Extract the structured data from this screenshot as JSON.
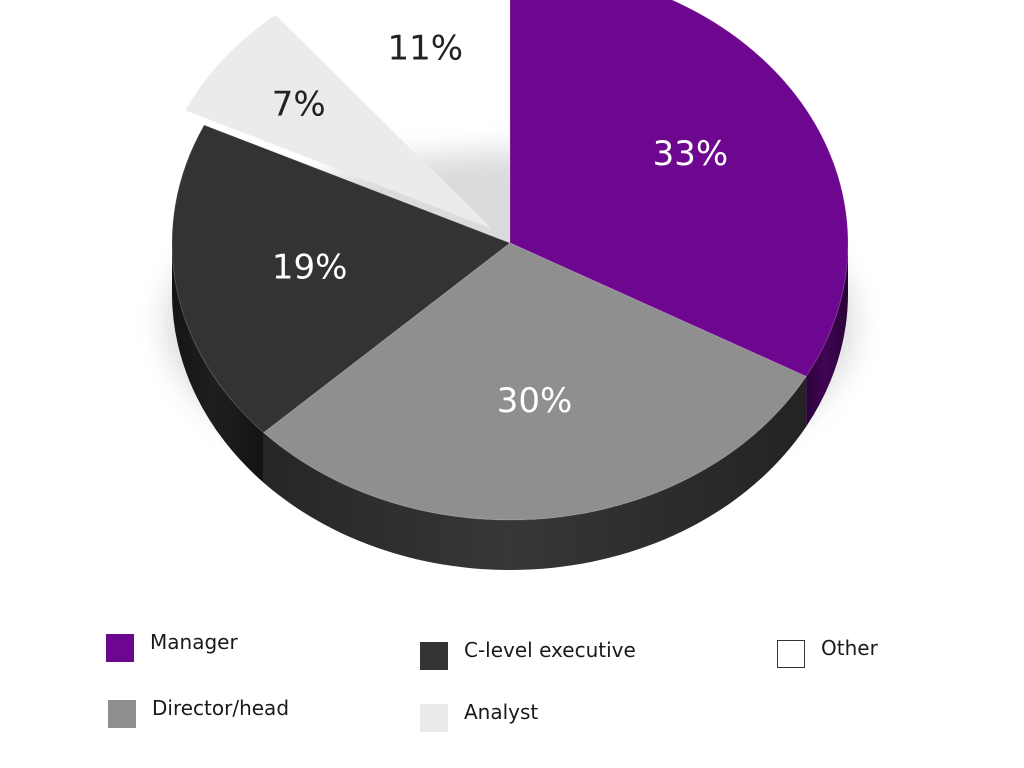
{
  "chart_data": {
    "type": "pie",
    "categories": [
      "Manager",
      "Director/head",
      "C-level executive",
      "Analyst",
      "Other"
    ],
    "values": [
      33,
      30,
      19,
      7,
      11
    ],
    "labels": [
      "33%",
      "30%",
      "19%",
      "7%",
      "11%"
    ],
    "colors": [
      "#6e078f",
      "#8f8f8f",
      "#333333",
      "#ebebeb",
      "#ffffff"
    ],
    "legend_placement": "bottom",
    "style": "3d-exploded"
  },
  "legend": [
    {
      "label": "Manager",
      "color": "#6e078f"
    },
    {
      "label": "Director/head",
      "color": "#8f8f8f"
    },
    {
      "label": "C-level executive",
      "color": "#333333"
    },
    {
      "label": "Analyst",
      "color": "#ebebeb"
    },
    {
      "label": "Other",
      "color": "#ffffff"
    }
  ]
}
